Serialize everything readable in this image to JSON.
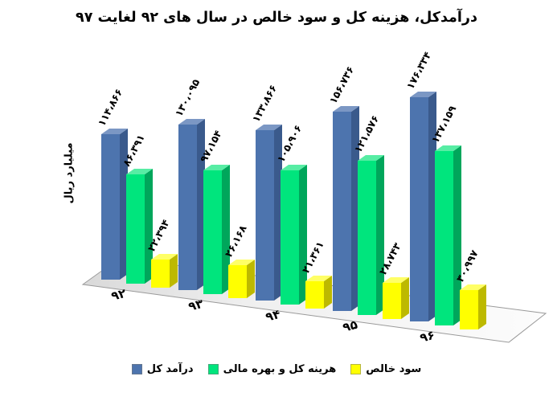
{
  "title": "درآمدکل، هزینه کل و سود خالص در سال های ۹۲ لغایت ۹۷",
  "y_axis_label": "میلیارد ریال",
  "legend": {
    "position": "bottom",
    "items": [
      {
        "label": "سود خالص",
        "color": "#ffff00"
      },
      {
        "label": "هرینه کل و بهره مالی",
        "color": "#00e57d"
      },
      {
        "label": "درآمد کل",
        "color": "#4d74ae"
      }
    ]
  },
  "chart_data": {
    "type": "bar",
    "style": "3d-clustered-column",
    "title": "درآمدکل، هزینه کل و سود خالص در سال های ۹۲ لغایت ۹۷",
    "xlabel": "",
    "ylabel": "میلیارد ریال",
    "ylim": [
      0,
      180000
    ],
    "grid": false,
    "legend_position": "bottom",
    "categories": [
      "۹۲",
      "۹۳",
      "۹۴",
      "۹۵",
      "۹۶"
    ],
    "series": [
      {
        "name": "درآمد کل",
        "color": "#4d74ae",
        "values": [
          114866,
          130095,
          133866,
          156736,
          176334
        ],
        "data_labels": [
          "۱۱۴،۸۶۶",
          "۱۳۰،۰۹۵",
          "۱۳۳،۸۶۶",
          "۱۵۶،۷۳۶",
          "۱۷۶،۳۳۴"
        ]
      },
      {
        "name": "هرینه کل و بهره مالی",
        "color": "#00e57d",
        "values": [
          86391,
          97154,
          105906,
          121576,
          137159
        ],
        "data_labels": [
          "۸۶،۳۹۱",
          "۹۷،۱۵۴",
          "۱۰۵،۹۰۶",
          "۱۲۱،۵۷۶",
          "۱۳۷،۱۵۹"
        ]
      },
      {
        "name": "سود خالص",
        "color": "#ffff00",
        "values": [
          22394,
          26168,
          21361,
          28743,
          30997
        ],
        "data_labels": [
          "۲۲،۳۹۴",
          "۲۶،۱۶۸",
          "۲۱،۳۶۱",
          "۲۸،۷۴۳",
          "۳۰،۹۹۷"
        ]
      }
    ]
  }
}
